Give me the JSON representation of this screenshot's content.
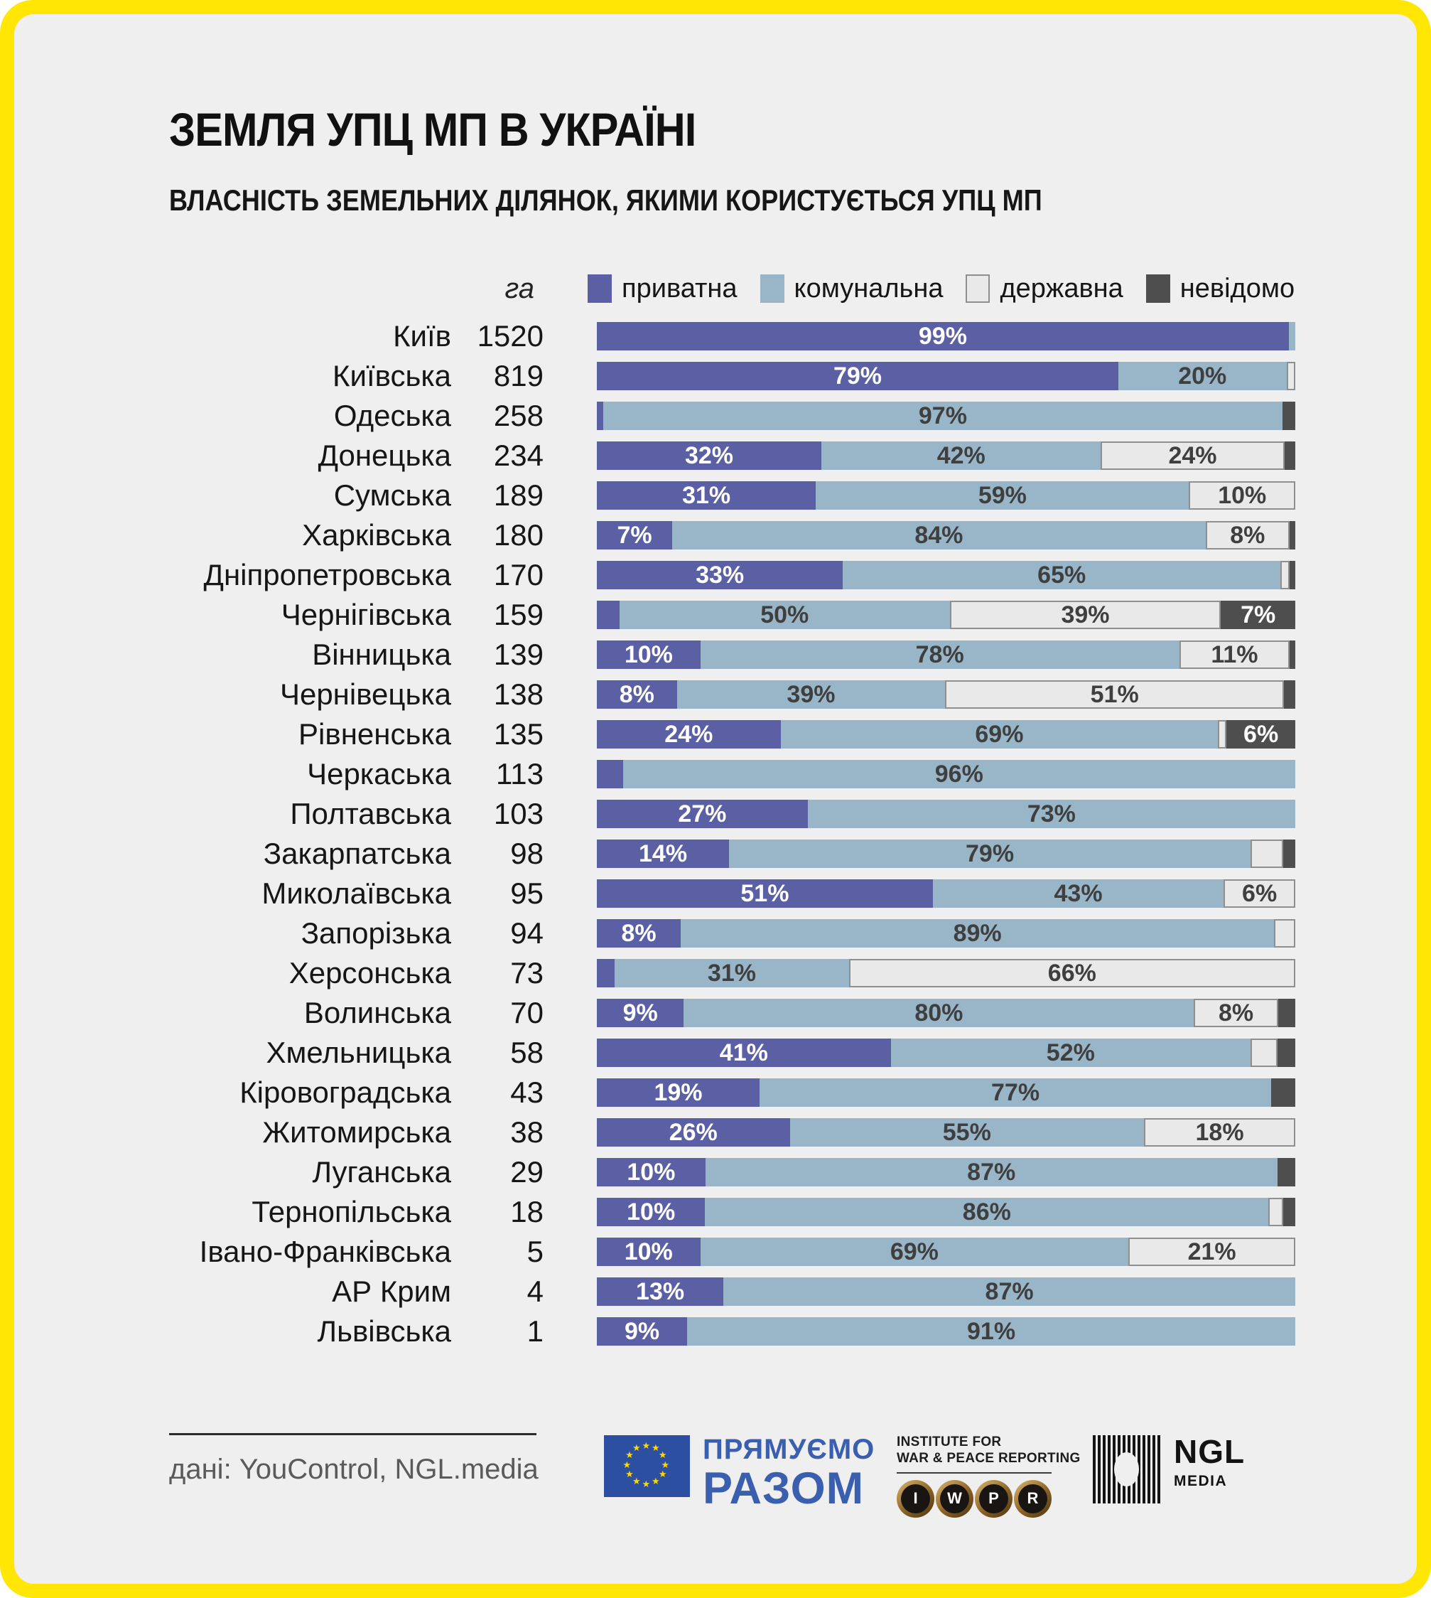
{
  "header": {
    "title": "ЗЕМЛЯ УПЦ МП В УКРАЇНІ",
    "subtitle": "ВЛАСНІСТЬ ЗЕМЕЛЬНИХ ДІЛЯНОК, ЯКИМИ КОРИСТУЄТЬСЯ УПЦ МП"
  },
  "legend": {
    "unit": "га",
    "items": [
      {
        "key": "private",
        "label": "приватна"
      },
      {
        "key": "communal",
        "label": "комунальна"
      },
      {
        "key": "state",
        "label": "державна"
      },
      {
        "key": "unknown",
        "label": "невідомо"
      }
    ]
  },
  "colors": {
    "frame": "#FFE604",
    "background": "#EFEFEF",
    "private": "#5B5FA3",
    "communal": "#99B6C8",
    "state": "#E9E9E9",
    "state_border": "#8F8F8F",
    "unknown": "#4E4E4E",
    "eu_blue": "#2D4FA1",
    "eu_star_yellow": "#FFD800",
    "brand_blue": "#3A5FAE"
  },
  "chart_data": {
    "type": "bar",
    "stacked": true,
    "orientation": "horizontal",
    "unit": "га",
    "series_names": [
      "приватна",
      "комунальна",
      "державна",
      "невідомо"
    ],
    "rows": [
      {
        "region": "Київ",
        "ha": 1520,
        "segments": [
          {
            "type": "private",
            "pct": 99,
            "label": "99%"
          },
          {
            "type": "communal",
            "pct": 1
          }
        ]
      },
      {
        "region": "Київська",
        "ha": 819,
        "segments": [
          {
            "type": "private",
            "pct": 79,
            "label": "79%"
          },
          {
            "type": "communal",
            "pct": 20,
            "label": "20%"
          },
          {
            "type": "state",
            "pct": 1
          }
        ]
      },
      {
        "region": "Одеська",
        "ha": 258,
        "segments": [
          {
            "type": "private",
            "pct": 1
          },
          {
            "type": "communal",
            "pct": 97,
            "label": "97%"
          },
          {
            "type": "unknown",
            "pct": 2
          }
        ]
      },
      {
        "region": "Донецька",
        "ha": 234,
        "segments": [
          {
            "type": "private",
            "pct": 32,
            "label": "32%"
          },
          {
            "type": "communal",
            "pct": 42,
            "label": "42%"
          },
          {
            "type": "state",
            "pct": 24,
            "label": "24%"
          },
          {
            "type": "unknown",
            "pct": 2
          }
        ]
      },
      {
        "region": "Сумська",
        "ha": 189,
        "segments": [
          {
            "type": "private",
            "pct": 31,
            "label": "31%"
          },
          {
            "type": "communal",
            "pct": 59,
            "label": "59%"
          },
          {
            "type": "state",
            "pct": 10,
            "label": "10%"
          }
        ]
      },
      {
        "region": "Харківська",
        "ha": 180,
        "segments": [
          {
            "type": "private",
            "pct": 7,
            "label": "7%"
          },
          {
            "type": "communal",
            "pct": 84,
            "label": "84%"
          },
          {
            "type": "state",
            "pct": 8,
            "label": "8%"
          },
          {
            "type": "unknown",
            "pct": 1
          }
        ]
      },
      {
        "region": "Дніпропетровська",
        "ha": 170,
        "segments": [
          {
            "type": "private",
            "pct": 33,
            "label": "33%"
          },
          {
            "type": "communal",
            "pct": 65,
            "label": "65%"
          },
          {
            "type": "state",
            "pct": 1
          },
          {
            "type": "unknown",
            "pct": 1
          }
        ]
      },
      {
        "region": "Чернігівська",
        "ha": 159,
        "segments": [
          {
            "type": "private",
            "pct": 4
          },
          {
            "type": "communal",
            "pct": 50,
            "label": "50%"
          },
          {
            "type": "state",
            "pct": 39,
            "label": "39%"
          },
          {
            "type": "unknown",
            "pct": 7,
            "label": "7%"
          }
        ]
      },
      {
        "region": "Вінницька",
        "ha": 139,
        "segments": [
          {
            "type": "private",
            "pct": 10,
            "label": "10%"
          },
          {
            "type": "communal",
            "pct": 78,
            "label": "78%"
          },
          {
            "type": "state",
            "pct": 11,
            "label": "11%"
          },
          {
            "type": "unknown",
            "pct": 1
          }
        ]
      },
      {
        "region": "Чернівецька",
        "ha": 138,
        "segments": [
          {
            "type": "private",
            "pct": 8,
            "label": "8%"
          },
          {
            "type": "communal",
            "pct": 39,
            "label": "39%"
          },
          {
            "type": "state",
            "pct": 51,
            "label": "51%"
          },
          {
            "type": "unknown",
            "pct": 2
          }
        ]
      },
      {
        "region": "Рівненська",
        "ha": 135,
        "segments": [
          {
            "type": "private",
            "pct": 24,
            "label": "24%"
          },
          {
            "type": "communal",
            "pct": 69,
            "label": "69%"
          },
          {
            "type": "state",
            "pct": 1
          },
          {
            "type": "unknown",
            "pct": 6,
            "label": "6%"
          }
        ]
      },
      {
        "region": "Черкаська",
        "ha": 113,
        "segments": [
          {
            "type": "private",
            "pct": 4
          },
          {
            "type": "communal",
            "pct": 96,
            "label": "96%"
          }
        ]
      },
      {
        "region": "Полтавська",
        "ha": 103,
        "segments": [
          {
            "type": "private",
            "pct": 27,
            "label": "27%"
          },
          {
            "type": "communal",
            "pct": 73,
            "label": "73%"
          }
        ]
      },
      {
        "region": "Закарпатська",
        "ha": 98,
        "segments": [
          {
            "type": "private",
            "pct": 14,
            "label": "14%"
          },
          {
            "type": "communal",
            "pct": 79,
            "label": "79%"
          },
          {
            "type": "state",
            "pct": 5
          },
          {
            "type": "unknown",
            "pct": 2
          }
        ]
      },
      {
        "region": "Миколаївська",
        "ha": 95,
        "segments": [
          {
            "type": "private",
            "pct": 51,
            "label": "51%"
          },
          {
            "type": "communal",
            "pct": 43,
            "label": "43%"
          },
          {
            "type": "state",
            "pct": 6,
            "label": "6%"
          }
        ]
      },
      {
        "region": "Запорізька",
        "ha": 94,
        "segments": [
          {
            "type": "private",
            "pct": 8,
            "label": "8%"
          },
          {
            "type": "communal",
            "pct": 89,
            "label": "89%"
          },
          {
            "type": "state",
            "pct": 3
          }
        ]
      },
      {
        "region": "Херсонська",
        "ha": 73,
        "segments": [
          {
            "type": "private",
            "pct": 3
          },
          {
            "type": "communal",
            "pct": 31,
            "label": "31%"
          },
          {
            "type": "state",
            "pct": 66,
            "label": "66%"
          }
        ]
      },
      {
        "region": "Волинська",
        "ha": 70,
        "segments": [
          {
            "type": "private",
            "pct": 9,
            "label": "9%"
          },
          {
            "type": "communal",
            "pct": 80,
            "label": "80%"
          },
          {
            "type": "state",
            "pct": 8,
            "label": "8%"
          },
          {
            "type": "unknown",
            "pct": 3
          }
        ]
      },
      {
        "region": "Хмельницька",
        "ha": 58,
        "segments": [
          {
            "type": "private",
            "pct": 41,
            "label": "41%"
          },
          {
            "type": "communal",
            "pct": 52,
            "label": "52%"
          },
          {
            "type": "state",
            "pct": 4
          },
          {
            "type": "unknown",
            "pct": 3
          }
        ]
      },
      {
        "region": "Кіровоградська",
        "ha": 43,
        "segments": [
          {
            "type": "private",
            "pct": 19,
            "label": "19%"
          },
          {
            "type": "communal",
            "pct": 77,
            "label": "77%"
          },
          {
            "type": "unknown",
            "pct": 4
          }
        ]
      },
      {
        "region": "Житомирська",
        "ha": 38,
        "segments": [
          {
            "type": "private",
            "pct": 26,
            "label": "26%"
          },
          {
            "type": "communal",
            "pct": 55,
            "label": "55%"
          },
          {
            "type": "state",
            "pct": 18,
            "label": "18%"
          }
        ]
      },
      {
        "region": "Луганська",
        "ha": 29,
        "segments": [
          {
            "type": "private",
            "pct": 10,
            "label": "10%"
          },
          {
            "type": "communal",
            "pct": 87,
            "label": "87%"
          },
          {
            "type": "unknown",
            "pct": 3
          }
        ]
      },
      {
        "region": "Тернопільська",
        "ha": 18,
        "segments": [
          {
            "type": "private",
            "pct": 10,
            "label": "10%"
          },
          {
            "type": "communal",
            "pct": 86,
            "label": "86%"
          },
          {
            "type": "state",
            "pct": 2
          },
          {
            "type": "unknown",
            "pct": 2
          }
        ]
      },
      {
        "region": "Івано-Франківська",
        "ha": 5,
        "segments": [
          {
            "type": "private",
            "pct": 10,
            "label": "10%"
          },
          {
            "type": "communal",
            "pct": 69,
            "label": "69%"
          },
          {
            "type": "state",
            "pct": 21,
            "label": "21%"
          }
        ]
      },
      {
        "region": "АР Крим",
        "ha": 4,
        "segments": [
          {
            "type": "private",
            "pct": 13,
            "label": "13%"
          },
          {
            "type": "communal",
            "pct": 87,
            "label": "87%"
          }
        ]
      },
      {
        "region": "Львівська",
        "ha": 1,
        "segments": [
          {
            "type": "private",
            "pct": 9,
            "label": "9%"
          },
          {
            "type": "communal",
            "pct": 91,
            "label": "91%"
          }
        ]
      }
    ]
  },
  "footer": {
    "source": "дані: YouControl, NGL.media",
    "eu_program": {
      "line1": "ПРЯМУЄМО",
      "line2": "РАЗОМ"
    },
    "iwpr": {
      "line1": "INSTITUTE FOR",
      "line2": "WAR & PEACE REPORTING",
      "keys": [
        "I",
        "W",
        "P",
        "R"
      ]
    },
    "ngl": {
      "name": "NGL",
      "sub": "MEDIA"
    }
  }
}
